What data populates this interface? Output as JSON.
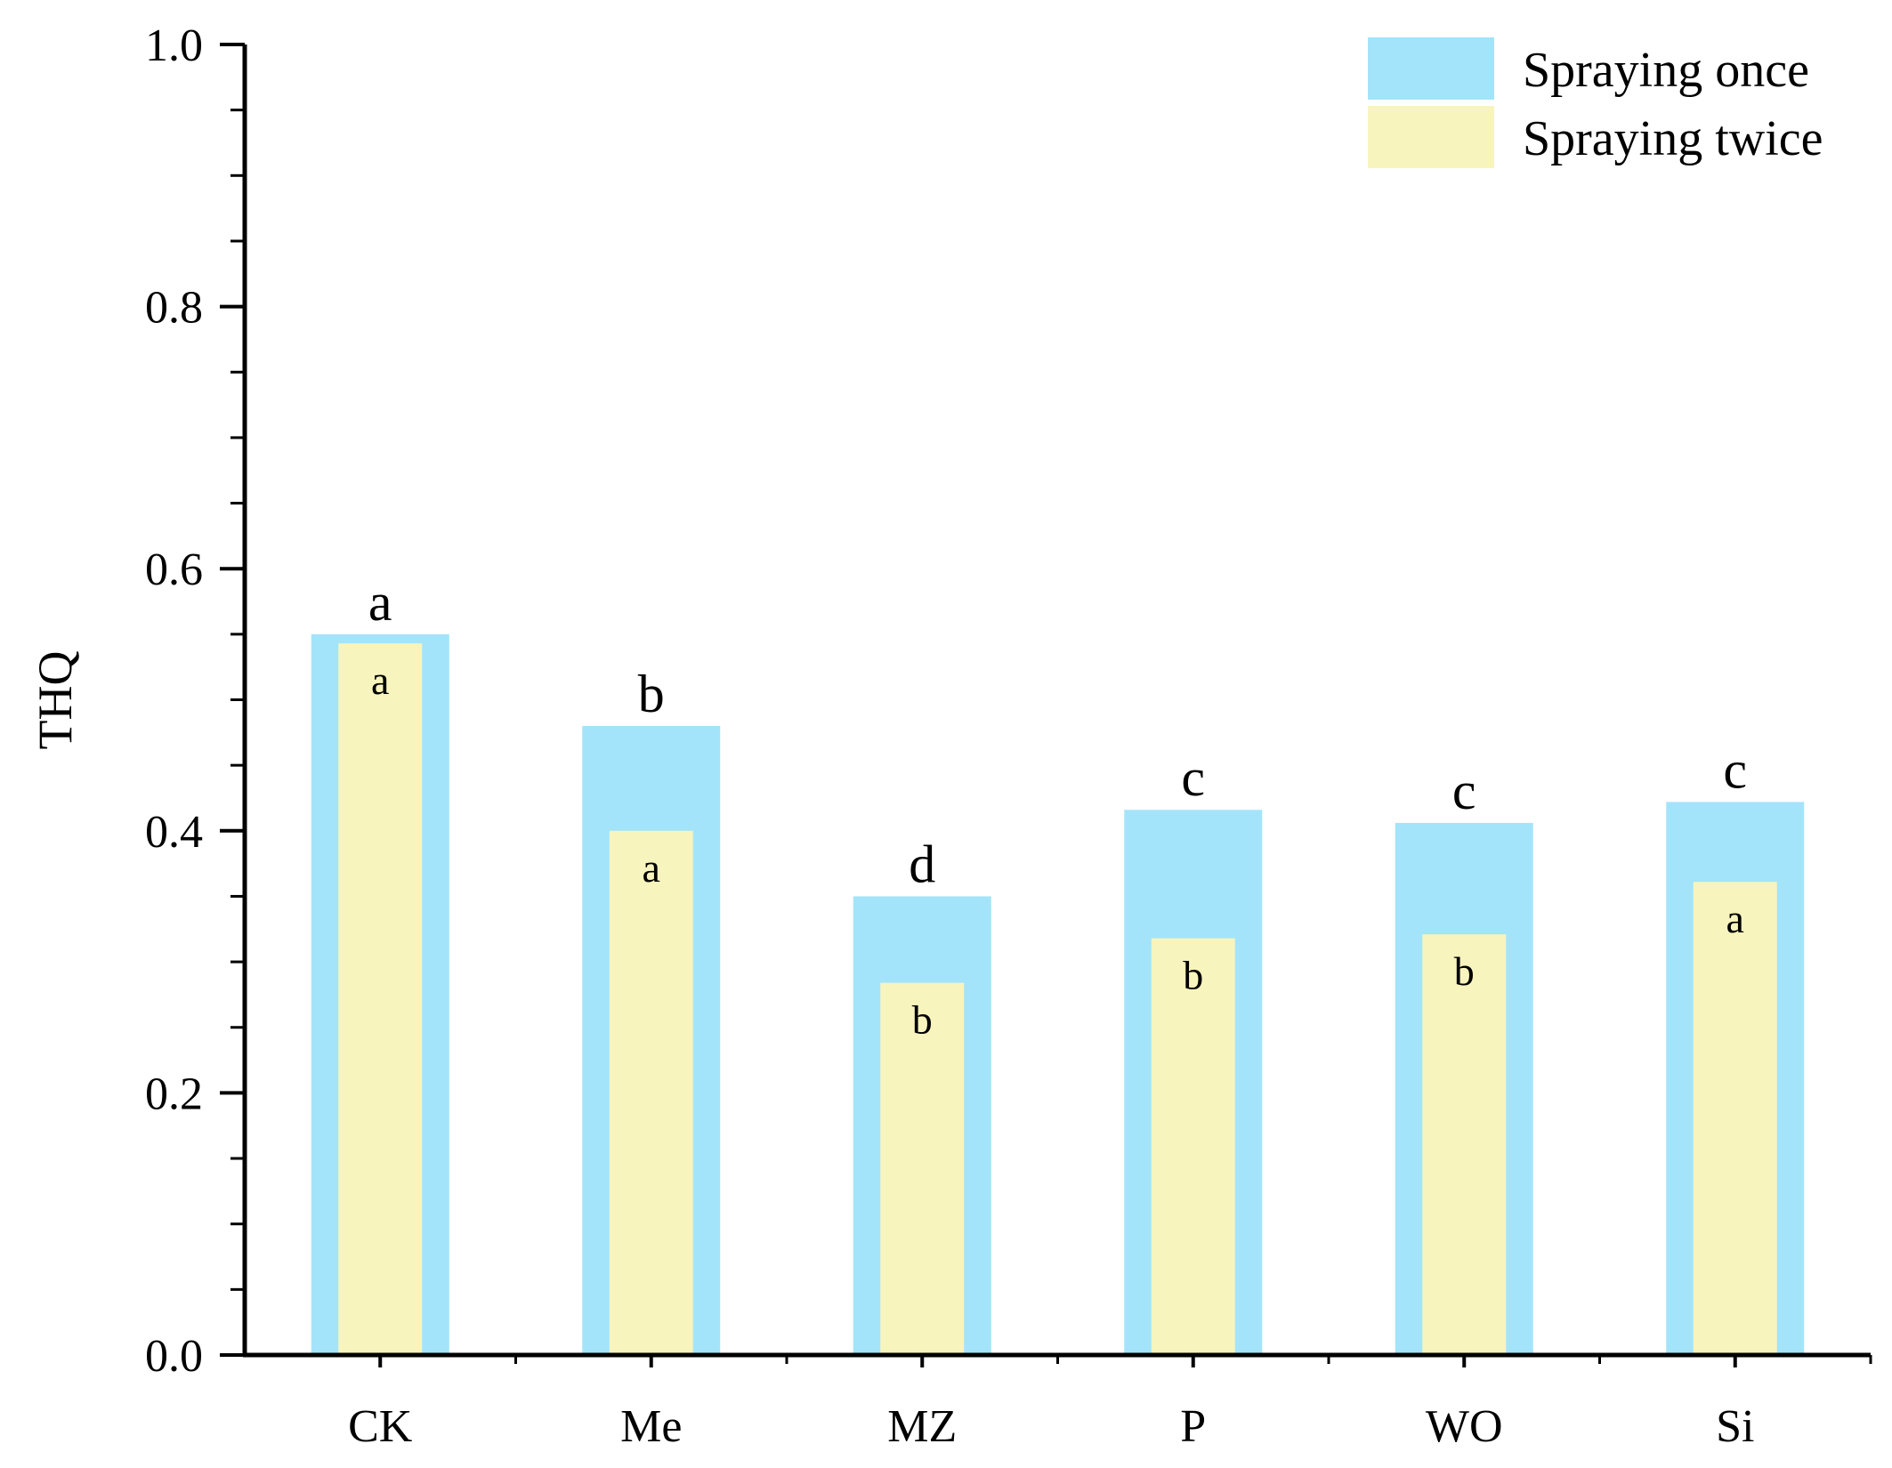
{
  "chart_data": {
    "type": "bar",
    "title": "",
    "xlabel": "",
    "ylabel": "THQ",
    "ylim": [
      0,
      1.0
    ],
    "yticks": [
      "0.0",
      "0.2",
      "0.4",
      "0.6",
      "0.8",
      "1.0"
    ],
    "categories": [
      "CK",
      "Me",
      "MZ",
      "P",
      "WO",
      "Si"
    ],
    "series": [
      {
        "name": "Spraying once",
        "color": "#a3e4fa",
        "values": [
          0.55,
          0.48,
          0.35,
          0.416,
          0.406,
          0.422
        ],
        "letters": [
          "a",
          "b",
          "d",
          "c",
          "c",
          "c"
        ]
      },
      {
        "name": "Spraying twice",
        "color": "#f8f4bd",
        "values": [
          0.543,
          0.4,
          0.284,
          0.318,
          0.321,
          0.361
        ],
        "letters": [
          "a",
          "a",
          "b",
          "b",
          "b",
          "a"
        ]
      }
    ],
    "legend": [
      "Spraying once",
      "Spraying twice"
    ],
    "grid": false
  }
}
